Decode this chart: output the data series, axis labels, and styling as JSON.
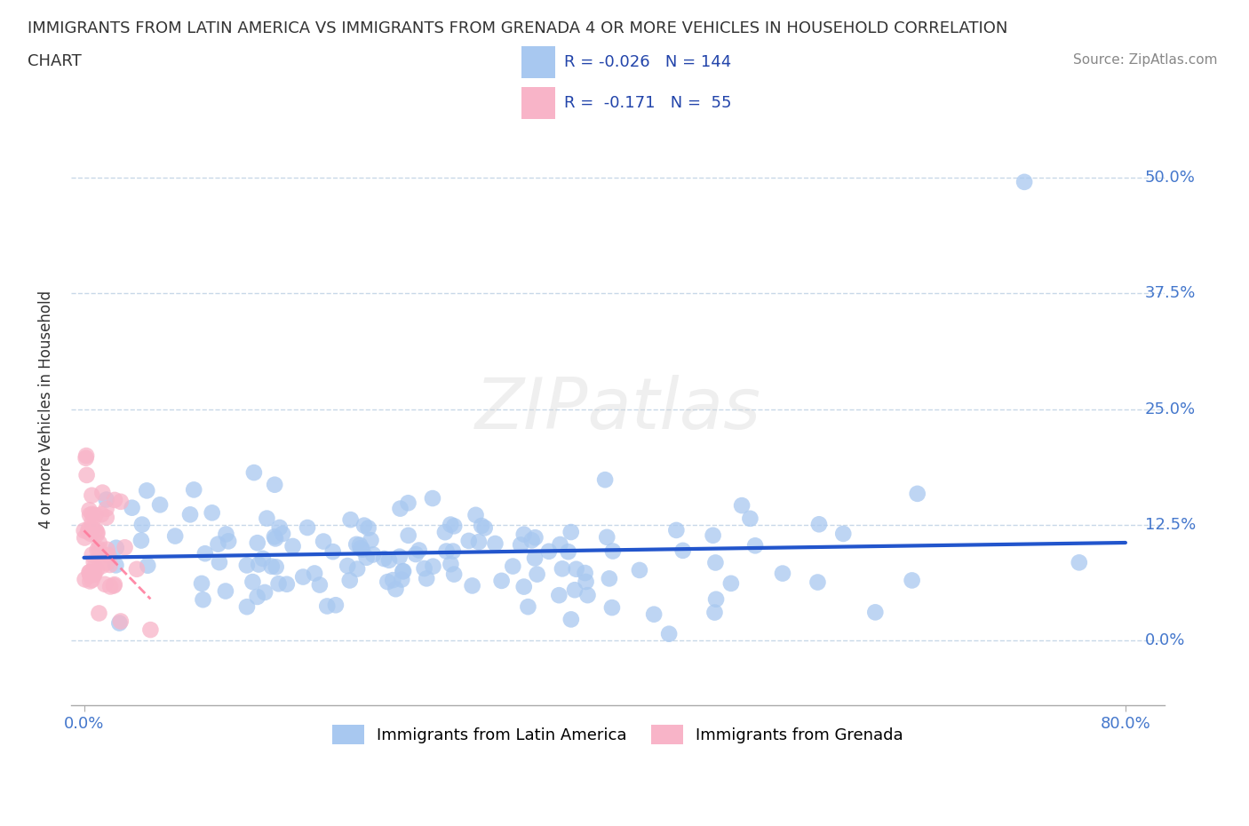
{
  "title_line1": "IMMIGRANTS FROM LATIN AMERICA VS IMMIGRANTS FROM GRENADA 4 OR MORE VEHICLES IN HOUSEHOLD CORRELATION",
  "title_line2": "CHART",
  "source": "Source: ZipAtlas.com",
  "ylabel": "4 or more Vehicles in Household",
  "blue_R": -0.026,
  "blue_N": 144,
  "pink_R": -0.171,
  "pink_N": 55,
  "blue_color": "#a8c8f0",
  "pink_color": "#f8b4c8",
  "blue_line_color": "#2255cc",
  "pink_line_color": "#ff7799",
  "grid_color": "#c8d8e8",
  "background_color": "#ffffff",
  "plot_bg_color": "#ffffff",
  "right_label_color": "#4477cc",
  "ytick_labels": [
    "0.0%",
    "12.5%",
    "25.0%",
    "37.5%",
    "50.0%"
  ],
  "ytick_values": [
    0.0,
    0.125,
    0.25,
    0.375,
    0.5
  ],
  "watermark_text": "ZIPatlas"
}
